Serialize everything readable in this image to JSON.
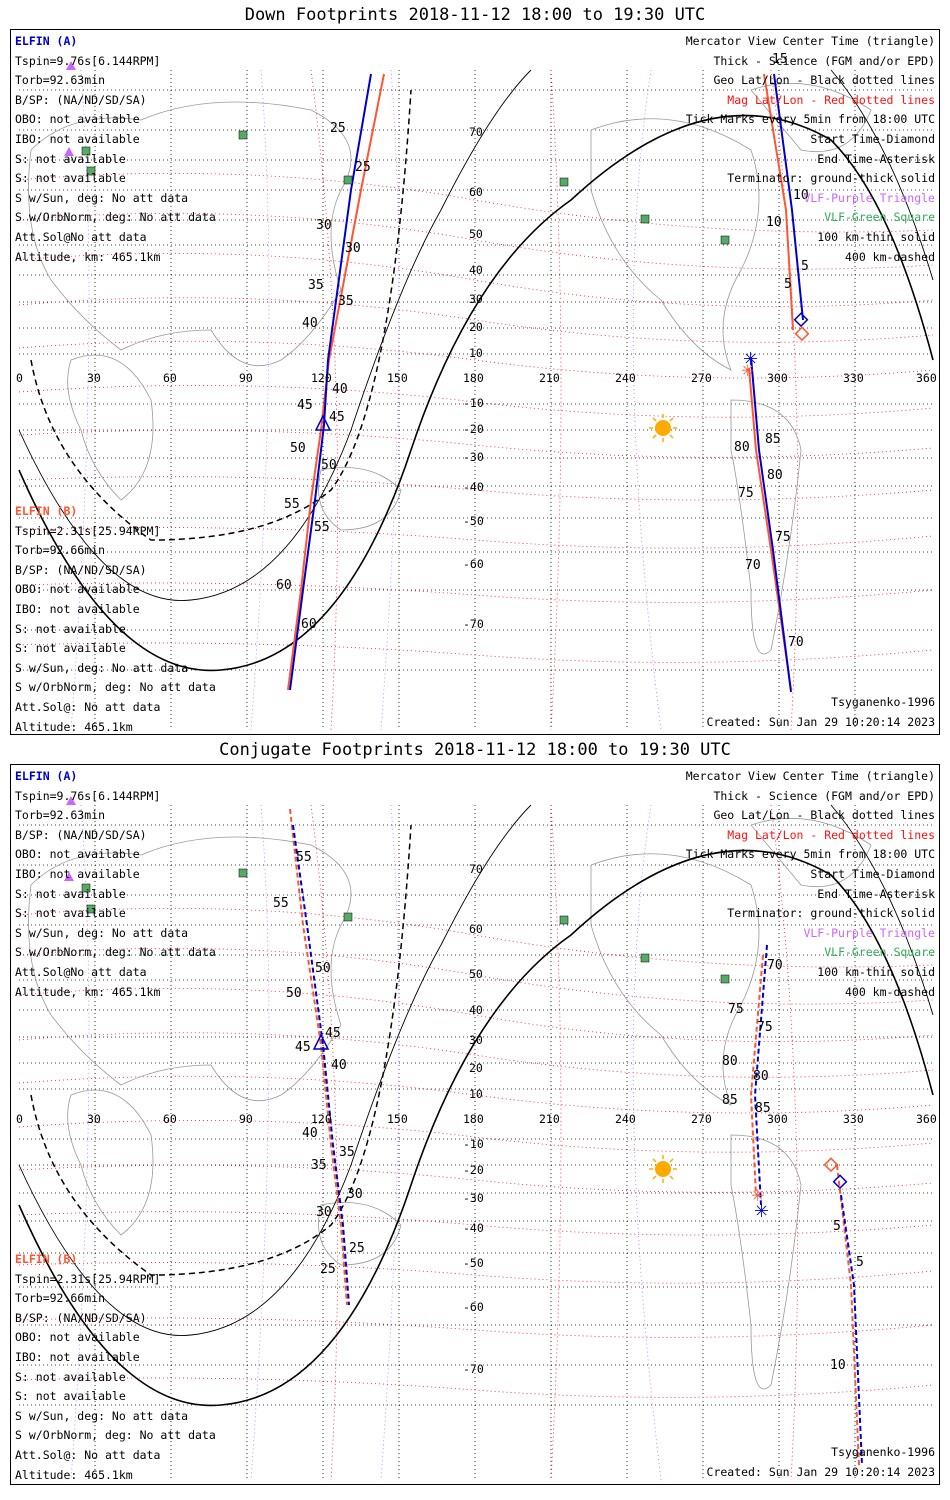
{
  "colors": {
    "spacecraft_a": "#0000cc",
    "spacecraft_b": "#ff5533",
    "mag_grid": "#ff1111",
    "vlf_purple": "#cc66ff",
    "vlf_green": "#33aa55",
    "terminator": "#000000",
    "sun": "#ffaa00"
  },
  "panels": [
    {
      "title": "Down Footprints 2018-11-12 18:00 to 19:30 UTC",
      "spacecraft_a": {
        "name": "ELFIN (A)",
        "lines": [
          "Tspin=9.76s[6.144RPM]",
          "Torb=92.63min",
          "B/SP: (NA/ND/SD/SA)",
          "OBO: not available",
          "IBO: not available",
          "S: not available",
          "S: not available",
          "S w/Sun, deg: No att data",
          "S w/OrbNorm, deg: No att data",
          "Att.Sol@No att data",
          "Altitude, km: 465.1km"
        ]
      },
      "spacecraft_b": {
        "name": "ELFIN (B)",
        "lines": [
          "Tspin=2.31s[25.94RPM]",
          "Torb=92.66min",
          "B/SP: (NA/ND/SD/SA)",
          "OBO: not available",
          "IBO: not available",
          "S: not available",
          "S: not available",
          "S w/Sun, deg: No att data",
          "S w/OrbNorm, deg: No att data",
          "Att.Sol@: No att data",
          "Altitude: 465.1km"
        ]
      },
      "legend": [
        {
          "text": "Mercator View Center Time (triangle)",
          "color": "#000000"
        },
        {
          "text": "Thick - Science (FGM and/or EPD)",
          "color": "#000000"
        },
        {
          "text": "Geo Lat/Lon - Black dotted lines",
          "color": "#000000"
        },
        {
          "text": "Mag Lat/Lon - Red dotted lines",
          "color": "#ff1111"
        },
        {
          "text": "Tick Marks every 5min from 18:00 UTC",
          "color": "#000000"
        },
        {
          "text": "Start Time-Diamond",
          "color": "#000000"
        },
        {
          "text": "End Time-Asterisk",
          "color": "#000000"
        },
        {
          "text": "Terminator: ground-thick solid",
          "color": "#000000"
        },
        {
          "text": "VLF-Purple Triangle",
          "color": "#cc66ff"
        },
        {
          "text": "VLF-Green Square",
          "color": "#33aa55"
        },
        {
          "text": "100 km-thin solid",
          "color": "#000000"
        },
        {
          "text": "400 km-dashed",
          "color": "#000000"
        }
      ],
      "model": "Tsyganenko-1996",
      "created": "Created: Sun Jan 29 10:20:14 2023",
      "lon_ticks": [
        "0",
        "30",
        "60",
        "90",
        "120",
        "150",
        "180",
        "210",
        "240",
        "270",
        "300",
        "330",
        "360"
      ],
      "lat_ticks": [
        "70",
        "60",
        "50",
        "40",
        "30",
        "20",
        "10",
        "-10",
        "-20",
        "-30",
        "-40",
        "-50",
        "-60",
        "-70"
      ],
      "track_a_labels": [
        "25",
        "30",
        "35",
        "40",
        "45",
        "50",
        "55",
        "60",
        "5",
        "10",
        "15",
        "70",
        "75",
        "80",
        "85"
      ],
      "track_b_labels": [
        "25",
        "30",
        "35",
        "40",
        "45",
        "50",
        "55",
        "60",
        "5",
        "10",
        "70",
        "75",
        "80",
        "85"
      ]
    },
    {
      "title": "Conjugate Footprints 2018-11-12 18:00 to 19:30 UTC",
      "spacecraft_a": {
        "name": "ELFIN (A)",
        "lines": [
          "Tspin=9.76s[6.144RPM]",
          "Torb=92.63min",
          "B/SP: (NA/ND/SD/SA)",
          "OBO: not available",
          "IBO: not available",
          "S: not available",
          "S: not available",
          "S w/Sun, deg: No att data",
          "S w/OrbNorm, deg: No att data",
          "Att.Sol@No att data",
          "Altitude, km: 465.1km"
        ]
      },
      "spacecraft_b": {
        "name": "ELFIN (B)",
        "lines": [
          "Tspin=2.31s[25.94RPM]",
          "Torb=92.66min",
          "B/SP: (NA/ND/SD/SA)",
          "OBO: not available",
          "IBO: not available",
          "S: not available",
          "S: not available",
          "S w/Sun, deg: No att data",
          "S w/OrbNorm, deg: No att data",
          "Att.Sol@: No att data",
          "Altitude: 465.1km"
        ]
      },
      "legend": [
        {
          "text": "Mercator View Center Time (triangle)",
          "color": "#000000"
        },
        {
          "text": "Thick - Science (FGM and/or EPD)",
          "color": "#000000"
        },
        {
          "text": "Geo Lat/Lon - Black dotted lines",
          "color": "#000000"
        },
        {
          "text": "Mag Lat/Lon - Red dotted lines",
          "color": "#ff1111"
        },
        {
          "text": "Tick Marks every 5min from 18:00 UTC",
          "color": "#000000"
        },
        {
          "text": "Start Time-Diamond",
          "color": "#000000"
        },
        {
          "text": "End Time-Asterisk",
          "color": "#000000"
        },
        {
          "text": "Terminator: ground-thick solid",
          "color": "#000000"
        },
        {
          "text": "VLF-Purple Triangle",
          "color": "#cc66ff"
        },
        {
          "text": "VLF-Green Square",
          "color": "#33aa55"
        },
        {
          "text": "100 km-thin solid",
          "color": "#000000"
        },
        {
          "text": "400 km-dashed",
          "color": "#000000"
        }
      ],
      "model": "Tsyganenko-1996",
      "created": "Created: Sun Jan 29 10:20:14 2023",
      "lon_ticks": [
        "0",
        "30",
        "60",
        "90",
        "120",
        "150",
        "180",
        "210",
        "240",
        "270",
        "300",
        "330",
        "360"
      ],
      "lat_ticks": [
        "70",
        "60",
        "50",
        "40",
        "30",
        "20",
        "10",
        "-10",
        "-20",
        "-30",
        "-40",
        "-50",
        "-60",
        "-70"
      ],
      "track_a_labels": [
        "55",
        "50",
        "45",
        "40",
        "35",
        "30",
        "25",
        "70",
        "75",
        "80",
        "85",
        "5"
      ],
      "track_b_labels": [
        "55",
        "50",
        "45",
        "40",
        "35",
        "30",
        "25",
        "75",
        "80",
        "85",
        "5",
        "10"
      ]
    }
  ]
}
